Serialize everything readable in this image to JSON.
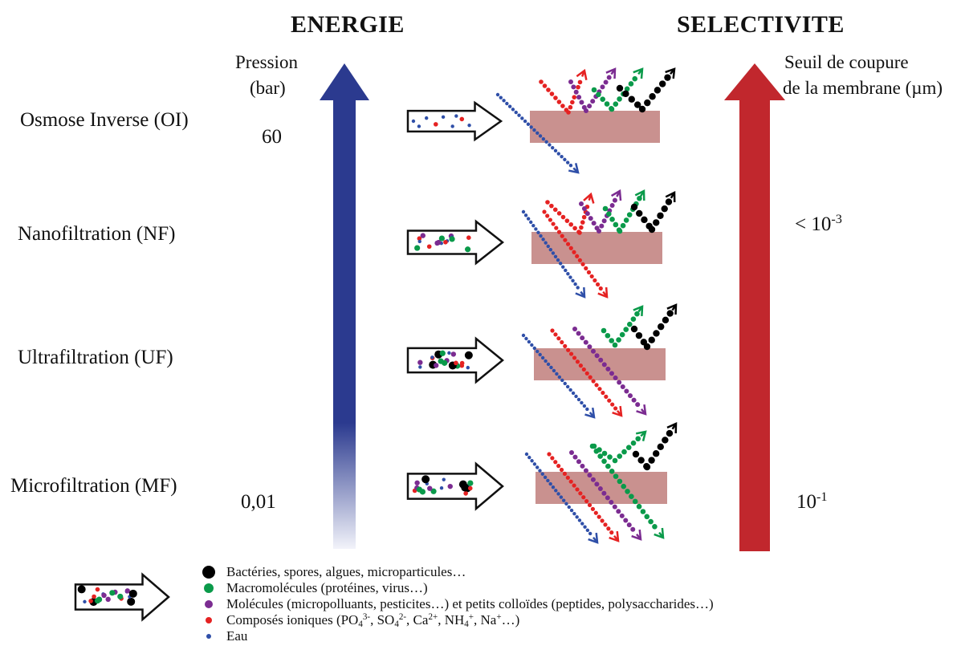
{
  "headings": {
    "left": "ENERGIE",
    "right": "SELECTIVITE"
  },
  "pressure_axis": {
    "label_line1": "Pression",
    "label_line2": "(bar)",
    "top_value": "60",
    "bottom_value": "0,01"
  },
  "cutoff_axis": {
    "label_line1": "Seuil de coupure",
    "label_line2": "de la membrane (µm)",
    "top_base": "< 10",
    "top_exp": "-3",
    "bottom_base": "10",
    "bottom_exp": "-1"
  },
  "processes": [
    {
      "label": "Osmose Inverse  (OI)",
      "passing": [
        "water"
      ],
      "retained": [
        "ionic",
        "molecule",
        "macro",
        "bacteria"
      ]
    },
    {
      "label": "Nanofiltration (NF)",
      "passing": [
        "water",
        "ionic"
      ],
      "retained": [
        "ionic",
        "molecule",
        "macro",
        "bacteria"
      ]
    },
    {
      "label": "Ultrafiltration  (UF)",
      "passing": [
        "water",
        "ionic",
        "molecule"
      ],
      "retained": [
        "macro",
        "bacteria"
      ]
    },
    {
      "label": "Microfiltration (MF)",
      "passing": [
        "water",
        "ionic",
        "molecule",
        "macro"
      ],
      "retained": [
        "macro",
        "bacteria"
      ]
    }
  ],
  "colors": {
    "energy_arrow": "#2b3a8f",
    "selectivity_arrow": "#c1272d",
    "membrane": "#c9918f",
    "water": "#2f4fa8",
    "ionic": "#e52222",
    "molecule": "#7b2c91",
    "macro": "#0a9a4a",
    "bacteria": "#000000"
  },
  "legend": {
    "items": [
      {
        "key": "bacteria",
        "text": "Bactéries, spores, algues, microparticules…"
      },
      {
        "key": "macro",
        "text": "Macromolécules (protéines, virus…)"
      },
      {
        "key": "molecule",
        "text": "Molécules (micropolluants, pesticites…) et petits colloïdes (peptides, polysaccharides…)"
      },
      {
        "key": "ionic",
        "text_parts": [
          "Composés ioniques (PO",
          "4",
          "3-",
          ", SO",
          "4",
          "2-",
          ", Ca",
          "2+",
          ", NH",
          "4",
          "+",
          ",  Na",
          "+",
          "…)"
        ]
      },
      {
        "key": "water",
        "text": "Eau"
      }
    ]
  }
}
